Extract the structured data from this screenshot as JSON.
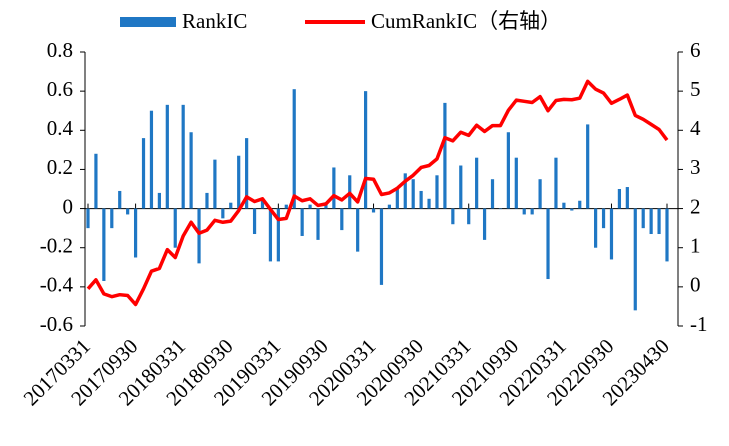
{
  "chart_data": {
    "type": "bar-line",
    "categories": [
      "20170331",
      null,
      null,
      null,
      null,
      null,
      "20170930",
      null,
      null,
      null,
      null,
      null,
      "20180331",
      null,
      null,
      null,
      null,
      null,
      "20180930",
      null,
      null,
      null,
      null,
      null,
      "20190331",
      null,
      null,
      null,
      null,
      null,
      "20190930",
      null,
      null,
      null,
      null,
      null,
      "20200331",
      null,
      null,
      null,
      null,
      null,
      "20200930",
      null,
      null,
      null,
      null,
      null,
      "20210331",
      null,
      null,
      null,
      null,
      null,
      "20210930",
      null,
      null,
      null,
      null,
      null,
      "20220331",
      null,
      null,
      null,
      null,
      null,
      "20220930",
      null,
      null,
      null,
      null,
      null,
      null,
      "20230430"
    ],
    "series": [
      {
        "name": "RankIC",
        "kind": "bar",
        "color": "#1f77c4",
        "values": [
          -0.1,
          0.28,
          -0.37,
          -0.1,
          0.09,
          -0.03,
          -0.25,
          0.36,
          0.5,
          0.08,
          0.53,
          -0.2,
          0.53,
          0.39,
          -0.28,
          0.08,
          0.25,
          -0.05,
          0.03,
          0.27,
          0.36,
          -0.13,
          0.04,
          -0.27,
          -0.27,
          0.02,
          0.61,
          -0.14,
          0.02,
          -0.16,
          0.03,
          0.21,
          -0.11,
          0.17,
          -0.22,
          0.6,
          -0.02,
          -0.39,
          0.02,
          0.11,
          0.18,
          0.15,
          0.09,
          0.05,
          0.17,
          0.54,
          -0.08,
          0.22,
          -0.08,
          0.26,
          -0.16,
          0.15,
          0.0,
          0.39,
          0.26,
          -0.03,
          -0.03,
          0.15,
          -0.36,
          0.26,
          0.03,
          -0.01,
          0.04,
          0.43,
          -0.2,
          -0.1,
          -0.26,
          0.1,
          0.11,
          -0.52,
          -0.1,
          -0.13,
          -0.13,
          -0.27
        ]
      },
      {
        "name": "CumRankIC（右轴）",
        "kind": "line",
        "axis": "y2",
        "color": "#ff0000",
        "values": [
          -0.05,
          0.18,
          -0.18,
          -0.25,
          -0.2,
          -0.22,
          -0.45,
          -0.05,
          0.4,
          0.47,
          0.95,
          0.75,
          1.3,
          1.65,
          1.37,
          1.45,
          1.7,
          1.65,
          1.68,
          1.95,
          2.3,
          2.18,
          2.25,
          1.98,
          1.72,
          1.75,
          2.32,
          2.2,
          2.25,
          2.08,
          2.12,
          2.33,
          2.22,
          2.39,
          2.17,
          2.77,
          2.75,
          2.36,
          2.4,
          2.52,
          2.7,
          2.85,
          3.05,
          3.1,
          3.27,
          3.81,
          3.73,
          3.95,
          3.87,
          4.13,
          3.97,
          4.12,
          4.12,
          4.51,
          4.77,
          4.74,
          4.71,
          4.86,
          4.5,
          4.76,
          4.79,
          4.78,
          4.82,
          5.25,
          5.05,
          4.95,
          4.69,
          4.79,
          4.9,
          4.38,
          4.28,
          4.15,
          4.02,
          3.75
        ]
      }
    ],
    "ylim": [
      -0.6,
      0.8
    ],
    "yticks": [
      0.8,
      0.6,
      0.4,
      0.2,
      0,
      -0.2,
      -0.4,
      -0.6
    ],
    "y2lim": [
      -1,
      6
    ],
    "y2ticks": [
      6,
      5,
      4,
      3,
      2,
      1,
      0,
      -1
    ],
    "legend": "top"
  }
}
